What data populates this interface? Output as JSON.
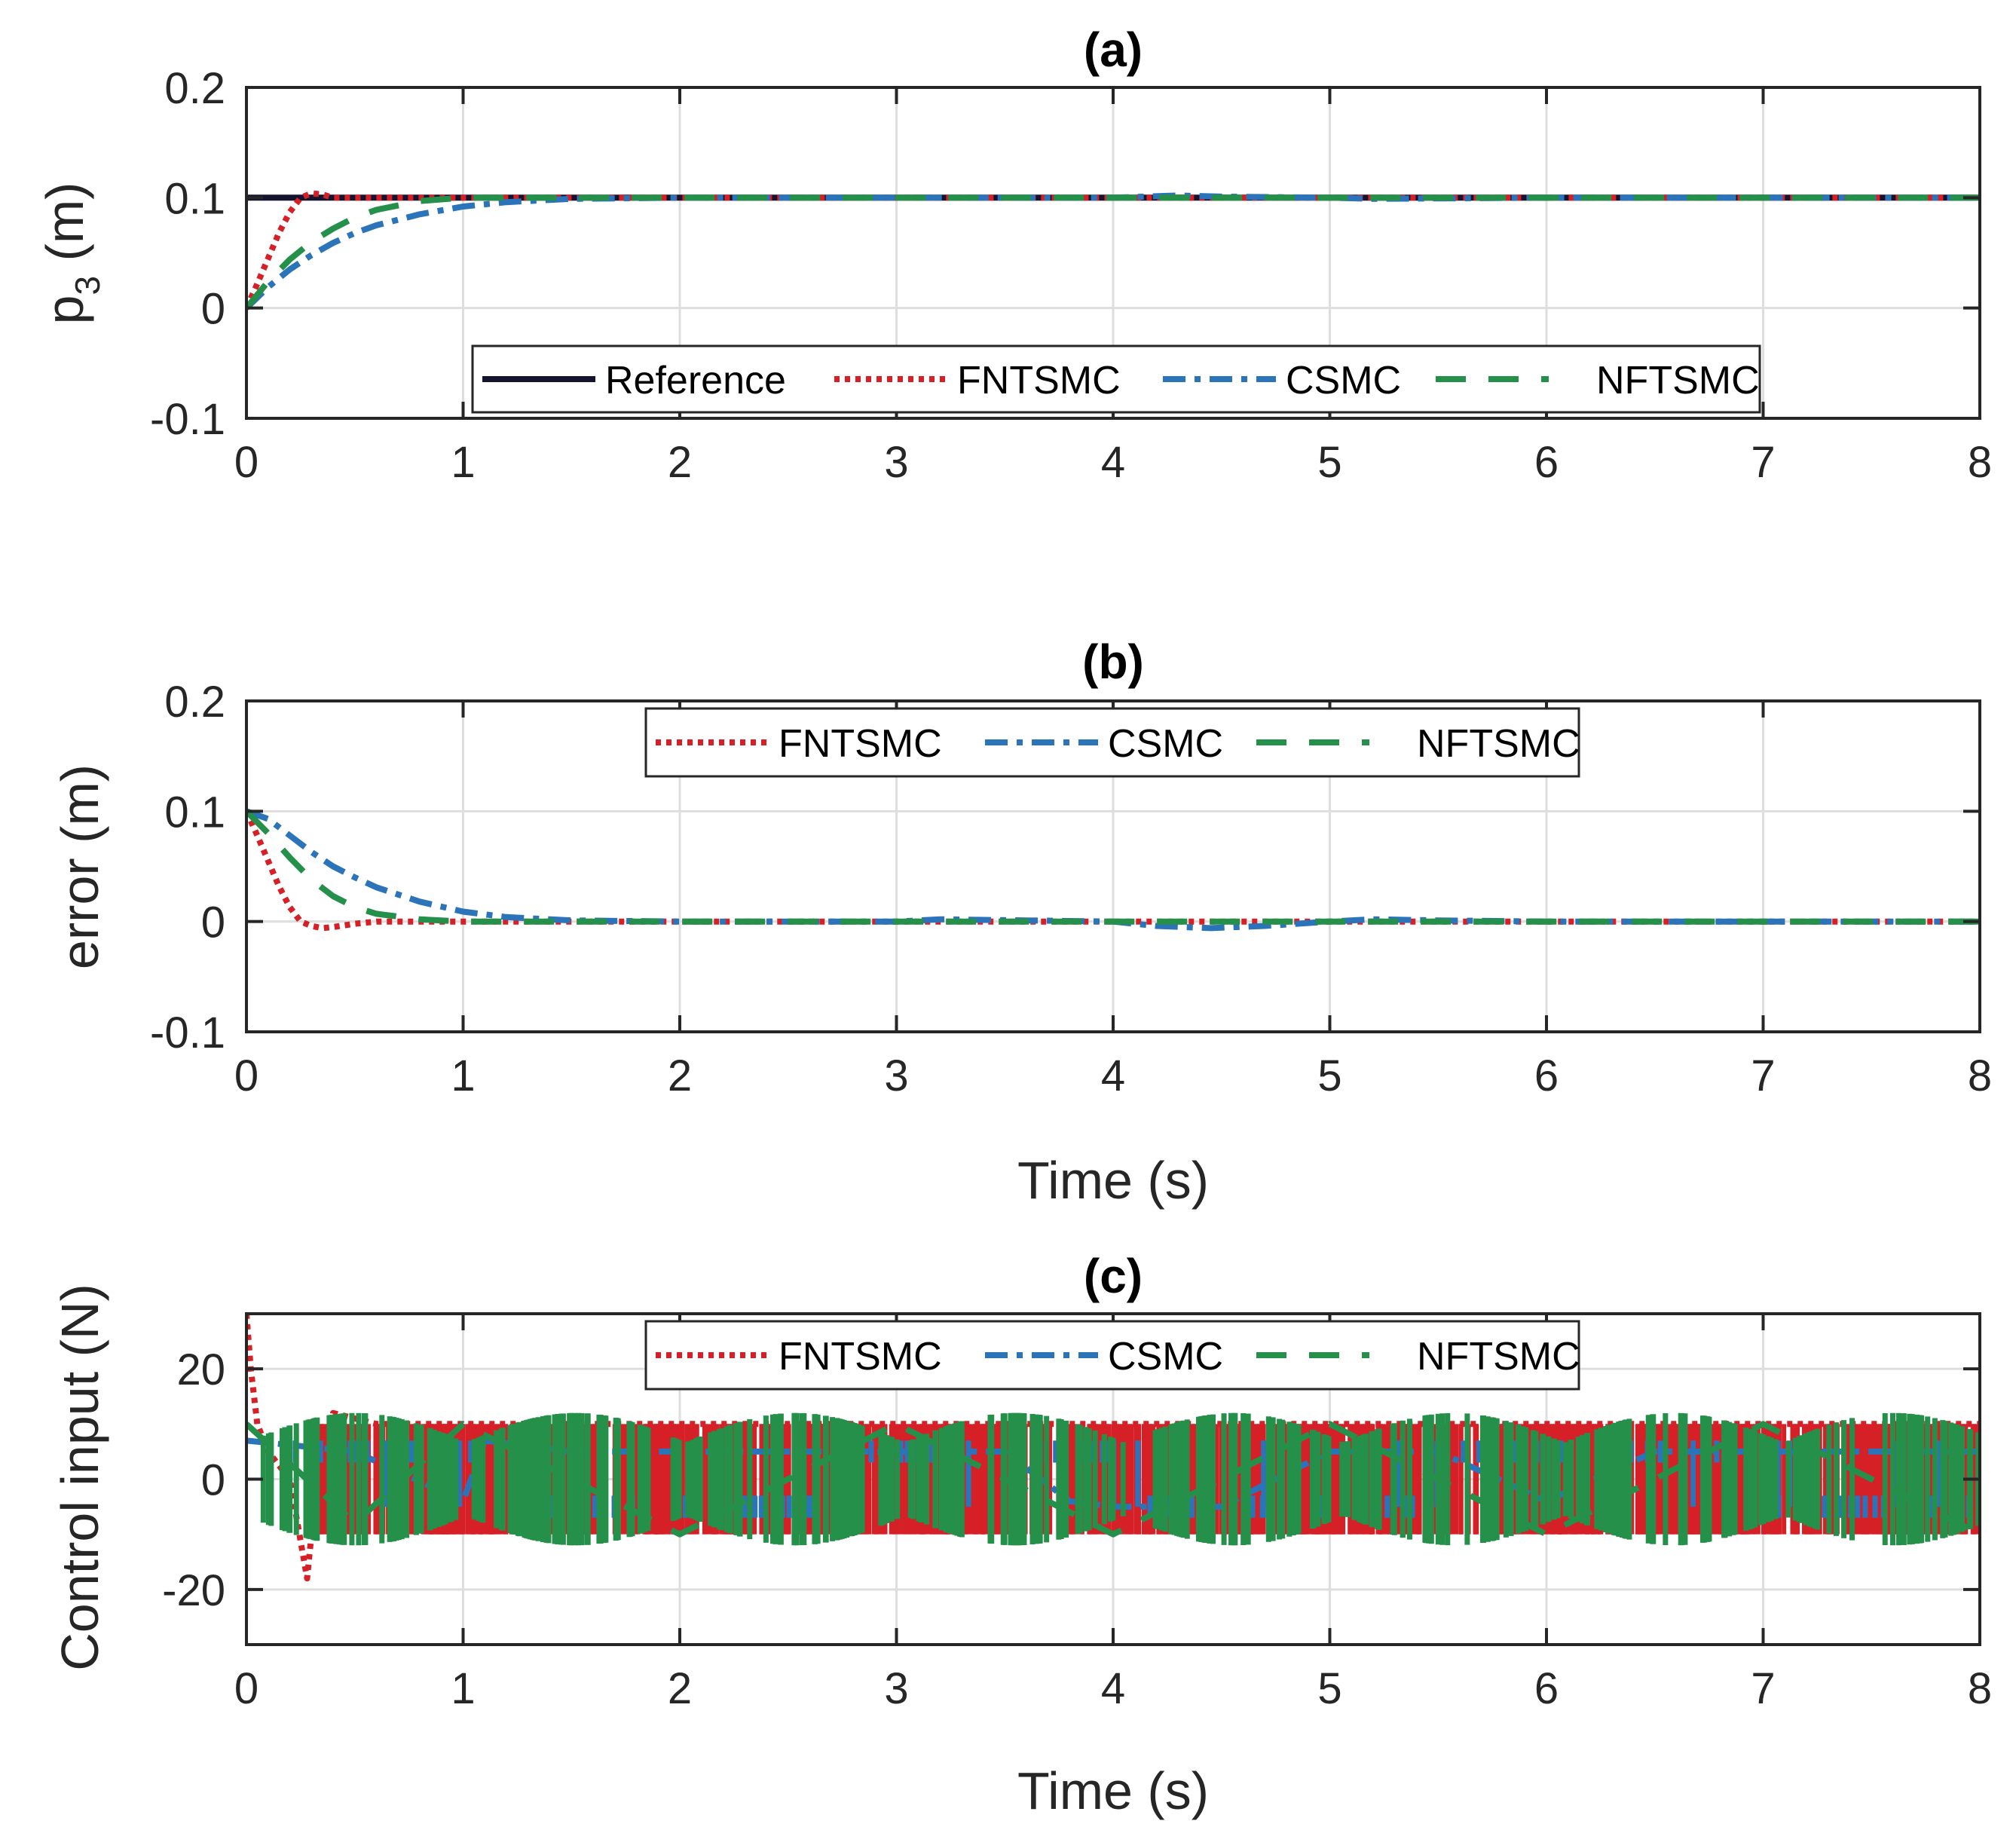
{
  "colors": {
    "reference": "#14142e",
    "fntsmc": "#d62027",
    "csmc": "#2b74b9",
    "nftsmc": "#24904a",
    "grid": "#dedede",
    "axis": "#262626"
  },
  "chart_data": [
    {
      "type": "line",
      "panel": "a",
      "title": "(a)",
      "ylabel": "p",
      "ylabel_sub": "3",
      "ylabel_unit": " (m)",
      "xlabel": "",
      "xlim": [
        0,
        8
      ],
      "ylim": [
        -0.1,
        0.2
      ],
      "xticks": [
        0,
        1,
        2,
        3,
        4,
        5,
        6,
        7,
        8
      ],
      "yticks": [
        -0.1,
        0,
        0.1,
        0.2
      ],
      "xtick_labels": [
        "0",
        "1",
        "2",
        "3",
        "4",
        "5",
        "6",
        "7",
        "8"
      ],
      "ytick_labels": [
        "-0.1",
        "0",
        "0.1",
        "0.2"
      ],
      "grid": true,
      "legend": {
        "location": "bottom-center",
        "entries": [
          "Reference",
          "FNTSMC",
          "CSMC",
          "NFTSMC"
        ]
      },
      "series": [
        {
          "name": "Reference",
          "style": "solid",
          "x": [
            0,
            8
          ],
          "y": [
            0.1,
            0.1
          ]
        },
        {
          "name": "FNTSMC",
          "style": "dotted",
          "x": [
            0,
            0.05,
            0.1,
            0.15,
            0.2,
            0.25,
            0.3,
            0.35,
            0.4,
            0.5,
            0.6,
            0.8,
            1.0,
            2.0,
            4.0,
            4.4,
            6.0,
            8.0
          ],
          "y": [
            0,
            0.022,
            0.045,
            0.068,
            0.087,
            0.1,
            0.104,
            0.103,
            0.1,
            0.1,
            0.1,
            0.1,
            0.1,
            0.1,
            0.1,
            0.1,
            0.1,
            0.1
          ]
        },
        {
          "name": "CSMC",
          "style": "dashdot",
          "x": [
            0,
            0.1,
            0.2,
            0.3,
            0.4,
            0.5,
            0.6,
            0.8,
            1.0,
            1.2,
            1.5,
            2.0,
            3.0,
            4.0,
            4.3,
            4.5,
            5.0,
            5.2,
            6.0,
            8.0
          ],
          "y": [
            0,
            0.019,
            0.035,
            0.048,
            0.059,
            0.068,
            0.075,
            0.085,
            0.092,
            0.096,
            0.099,
            0.1,
            0.1,
            0.1,
            0.102,
            0.101,
            0.1,
            0.099,
            0.1,
            0.1
          ]
        },
        {
          "name": "NFTSMC",
          "style": "dashed",
          "x": [
            0,
            0.1,
            0.2,
            0.3,
            0.4,
            0.5,
            0.6,
            0.8,
            1.0,
            1.2,
            2.0,
            4.0,
            6.0,
            8.0
          ],
          "y": [
            0,
            0.024,
            0.044,
            0.06,
            0.072,
            0.082,
            0.089,
            0.097,
            0.1,
            0.1,
            0.1,
            0.1,
            0.1,
            0.1
          ]
        }
      ]
    },
    {
      "type": "line",
      "panel": "b",
      "title": "(b)",
      "ylabel": "error (m)",
      "xlabel": "Time (s)",
      "xlim": [
        0,
        8
      ],
      "ylim": [
        -0.1,
        0.2
      ],
      "xticks": [
        0,
        1,
        2,
        3,
        4,
        5,
        6,
        7,
        8
      ],
      "yticks": [
        -0.1,
        0,
        0.1,
        0.2
      ],
      "xtick_labels": [
        "0",
        "1",
        "2",
        "3",
        "4",
        "5",
        "6",
        "7",
        "8"
      ],
      "ytick_labels": [
        "-0.1",
        "0",
        "0.1",
        "0.2"
      ],
      "grid": true,
      "legend": {
        "location": "top-center",
        "entries": [
          "FNTSMC",
          "CSMC",
          "NFTSMC"
        ]
      },
      "series": [
        {
          "name": "FNTSMC",
          "style": "dotted",
          "x": [
            0,
            0.05,
            0.1,
            0.15,
            0.2,
            0.25,
            0.3,
            0.35,
            0.4,
            0.5,
            0.6,
            0.8,
            1.0,
            2.0,
            4.0,
            6.0,
            8.0
          ],
          "y": [
            0.1,
            0.078,
            0.055,
            0.032,
            0.013,
            0,
            -0.004,
            -0.006,
            -0.005,
            -0.002,
            0,
            0,
            0,
            0,
            0,
            0,
            0
          ]
        },
        {
          "name": "CSMC",
          "style": "dashdot",
          "x": [
            0,
            0.1,
            0.2,
            0.3,
            0.4,
            0.5,
            0.6,
            0.8,
            1.0,
            1.2,
            1.5,
            2.0,
            3.0,
            3.2,
            3.6,
            4.0,
            4.2,
            4.45,
            4.7,
            5.0,
            5.2,
            5.5,
            6.0,
            8.0
          ],
          "y": [
            0.1,
            0.093,
            0.078,
            0.063,
            0.05,
            0.04,
            0.031,
            0.018,
            0.009,
            0.004,
            0.001,
            0,
            0,
            0.002,
            0.001,
            0,
            -0.004,
            -0.006,
            -0.004,
            0,
            0.002,
            0.001,
            0,
            0
          ]
        },
        {
          "name": "NFTSMC",
          "style": "dashed",
          "x": [
            0,
            0.1,
            0.2,
            0.3,
            0.4,
            0.5,
            0.6,
            0.8,
            1.0,
            1.2,
            2.0,
            4.0,
            6.0,
            8.0
          ],
          "y": [
            0.1,
            0.08,
            0.058,
            0.038,
            0.023,
            0.013,
            0.007,
            0.002,
            0,
            0,
            0,
            0,
            0,
            0
          ]
        }
      ]
    },
    {
      "type": "line",
      "panel": "c",
      "title": "(c)",
      "ylabel": "Control input (N)",
      "xlabel": "Time (s)",
      "xlim": [
        0,
        8
      ],
      "ylim": [
        -30,
        30
      ],
      "xticks": [
        0,
        1,
        2,
        3,
        4,
        5,
        6,
        7,
        8
      ],
      "yticks": [
        -20,
        0,
        20
      ],
      "xtick_labels": [
        "0",
        "1",
        "2",
        "3",
        "4",
        "5",
        "6",
        "7",
        "8"
      ],
      "ytick_labels": [
        "-20",
        "0",
        "20"
      ],
      "grid": true,
      "legend": {
        "location": "top-center",
        "entries": [
          "FNTSMC",
          "CSMC",
          "NFTSMC"
        ]
      },
      "series": [
        {
          "name": "FNTSMC",
          "style": "dotted",
          "note": "high-frequency chattering",
          "x": [
            0,
            0.02,
            0.05,
            0.1,
            0.2,
            0.28,
            0.3,
            0.4,
            0.6,
            1.0,
            8.0
          ],
          "y": [
            30,
            20,
            10,
            5,
            0,
            -18,
            -10,
            12,
            10,
            10,
            10
          ],
          "band": [
            -10,
            10
          ]
        },
        {
          "name": "CSMC",
          "style": "dashdot",
          "note": "switching between +/- levels",
          "x": [
            0,
            0.5,
            1.0,
            1.1,
            1.5,
            2.0,
            2.5,
            3.0,
            3.5,
            3.8,
            4.0,
            4.5,
            5.0,
            5.5,
            6.0,
            6.5,
            7.0,
            7.5,
            8.0
          ],
          "y": [
            7,
            5,
            -4,
            7,
            5,
            5,
            5,
            5,
            5,
            -4,
            -5,
            -5,
            5,
            5,
            -4,
            5,
            5,
            5,
            5
          ],
          "band": [
            -5,
            7
          ]
        },
        {
          "name": "NFTSMC",
          "style": "dashed",
          "note": "bursty chattering",
          "x": [
            0,
            0.5,
            1.0,
            2.0,
            3.0,
            4.0,
            5.0,
            6.0,
            7.0,
            8.0
          ],
          "y": [
            10,
            -8,
            10,
            -10,
            10,
            -10,
            10,
            -10,
            10,
            -10
          ],
          "band": [
            -12,
            12
          ]
        }
      ]
    }
  ]
}
